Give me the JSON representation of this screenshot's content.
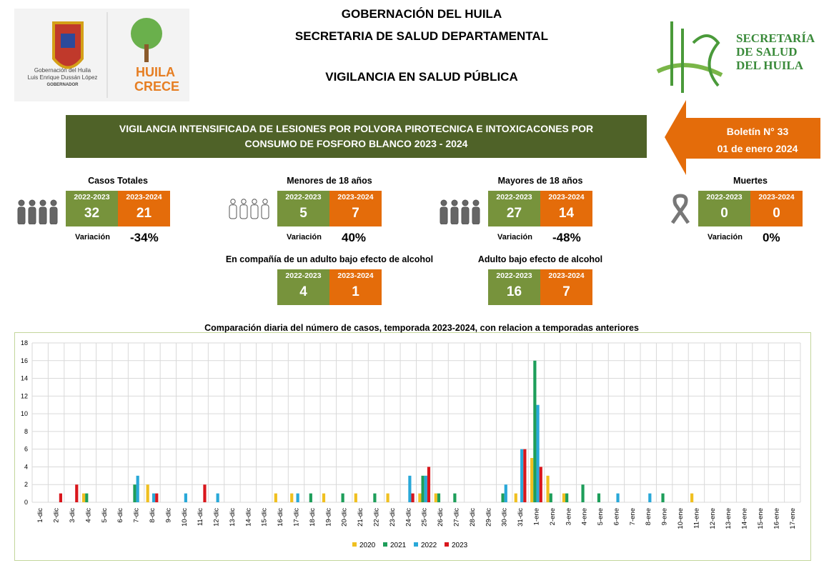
{
  "header": {
    "line1": "GOBERNACIÓN DEL HUILA",
    "line2": "SECRETARIA DE SALUD DEPARTAMENTAL",
    "line3": "VIGILANCIA EN SALUD PÚBLICA"
  },
  "logos": {
    "gobernacion": "Gobernación del Huila",
    "governor": "Luis Enrique Dussán López",
    "governor_title": "GOBERNADOR",
    "huila_crece": "HUILA CRECE",
    "secretaria": [
      "SECRETARÍA",
      "DE SALUD",
      "DEL HUILA"
    ]
  },
  "banner": {
    "line1": "VIGILANCIA INTENSIFICADA DE LESIONES POR POLVORA PIROTECNICA E INTOXICACONES POR",
    "line2": "CONSUMO DE FOSFORO BLANCO 2023 - 2024"
  },
  "bulletin": {
    "number": "Boletín N° 33",
    "date": "01 de enero 2024"
  },
  "colors": {
    "green": "#77933c",
    "orange": "#e46c0a",
    "banner": "#4f6228"
  },
  "stats": [
    {
      "title": "Casos Totales",
      "y1": "2022-2023",
      "v1": "32",
      "y2": "2023-2024",
      "v2": "21",
      "var_label": "Variación",
      "var": "-34%",
      "icon": "people-icon"
    },
    {
      "title": "Menores de 18 años",
      "y1": "2022-2023",
      "v1": "5",
      "y2": "2023-2024",
      "v2": "7",
      "var_label": "Variación",
      "var": "40%",
      "icon": "children-icon"
    },
    {
      "title": "Mayores de 18 años",
      "y1": "2022-2023",
      "v1": "27",
      "y2": "2023-2024",
      "v2": "14",
      "var_label": "Variación",
      "var": "-48%",
      "icon": "adults-icon"
    },
    {
      "title": "Muertes",
      "y1": "2022-2023",
      "v1": "0",
      "y2": "2023-2024",
      "v2": "0",
      "var_label": "Variación",
      "var": "0%",
      "icon": "ribbon-icon"
    },
    {
      "title": "En compañía de un adulto bajo efecto de alcohol",
      "y1": "2022-2023",
      "v1": "4",
      "y2": "2023-2024",
      "v2": "1"
    },
    {
      "title": "Adulto bajo efecto de alcohol",
      "y1": "2022-2023",
      "v1": "16",
      "y2": "2023-2024",
      "v2": "7"
    }
  ],
  "chart_data": {
    "type": "bar",
    "title": "Comparación diaria del número de casos, temporada 2023-2024, con relacion a temporadas anteriores",
    "ylim": [
      0,
      18
    ],
    "yticks": [
      0,
      2,
      4,
      6,
      8,
      10,
      12,
      14,
      16,
      18
    ],
    "grid": true,
    "legend": "bottom",
    "categories": [
      "1-dic",
      "2-dic",
      "3-dic",
      "4-dic",
      "5-dic",
      "6-dic",
      "7-dic",
      "8-dic",
      "9-dic",
      "10-dic",
      "11-dic",
      "12-dic",
      "13-dic",
      "14-dic",
      "15-dic",
      "16-dic",
      "17-dic",
      "18-dic",
      "19-dic",
      "20-dic",
      "21-dic",
      "22-dic",
      "23-dic",
      "24-dic",
      "25-dic",
      "26-dic",
      "27-dic",
      "28-dic",
      "29-dic",
      "30-dic",
      "31-dic",
      "1-ene",
      "2-ene",
      "3-ene",
      "4-ene",
      "5-ene",
      "6-ene",
      "7-ene",
      "8-ene",
      "9-ene",
      "10-ene",
      "11-ene",
      "12-ene",
      "13-ene",
      "14-ene",
      "15-ene",
      "16-ene",
      "17-ene"
    ],
    "series": [
      {
        "name": "2020",
        "color": "#f0c020",
        "values": [
          0,
          0,
          0,
          1,
          0,
          0,
          0,
          2,
          0,
          0,
          0,
          0,
          0,
          0,
          0,
          1,
          1,
          0,
          1,
          0,
          1,
          0,
          1,
          0,
          1,
          1,
          0,
          0,
          0,
          0,
          1,
          5,
          3,
          1,
          0,
          0,
          0,
          0,
          0,
          0,
          0,
          1,
          0,
          0,
          0,
          0,
          0,
          0
        ]
      },
      {
        "name": "2021",
        "color": "#1e9e5a",
        "values": [
          0,
          0,
          0,
          1,
          0,
          0,
          2,
          0,
          0,
          0,
          0,
          0,
          0,
          0,
          0,
          0,
          0,
          1,
          0,
          1,
          0,
          1,
          0,
          0,
          3,
          1,
          1,
          0,
          0,
          1,
          0,
          16,
          1,
          1,
          2,
          1,
          0,
          0,
          0,
          1,
          0,
          0,
          0,
          0,
          0,
          0,
          0,
          0
        ]
      },
      {
        "name": "2022",
        "color": "#29a8d8",
        "values": [
          0,
          0,
          0,
          0,
          0,
          0,
          3,
          1,
          0,
          1,
          0,
          1,
          0,
          0,
          0,
          0,
          1,
          0,
          0,
          0,
          0,
          0,
          0,
          3,
          3,
          0,
          0,
          0,
          0,
          2,
          6,
          11,
          0,
          0,
          0,
          0,
          1,
          0,
          1,
          0,
          0,
          0,
          0,
          0,
          0,
          0,
          0,
          0
        ]
      },
      {
        "name": "2023",
        "color": "#d9161c",
        "values": [
          0,
          1,
          2,
          0,
          0,
          0,
          0,
          1,
          0,
          0,
          2,
          0,
          0,
          0,
          0,
          0,
          0,
          0,
          0,
          0,
          0,
          0,
          0,
          1,
          4,
          0,
          0,
          0,
          0,
          0,
          6,
          4,
          0,
          0,
          0,
          0,
          0,
          0,
          0,
          0,
          0,
          0,
          0,
          0,
          0,
          0,
          0,
          0
        ]
      }
    ]
  }
}
